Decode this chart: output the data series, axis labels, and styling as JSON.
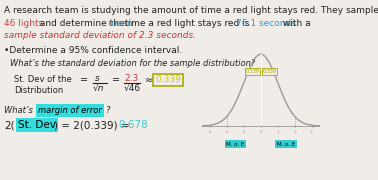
{
  "bg_color": "#f0ede8",
  "text_color": "#222222",
  "line1": "A research team is studying the amount of time a red light stays red. They sample",
  "line2a": "46 lights",
  "line2b": " and determine the ",
  "line2c": "mean",
  "line2d": " time a red light stays red is ",
  "line2e": "76.1 seconds",
  "line2f": " with a",
  "line3": "sample standard deviation of 2.3 seconds.",
  "bullet": "•Determine a 95% confidence interval.",
  "q1": "What’s the standard deviation for the sample distribution?",
  "label_stdev": "St. Dev of the",
  "label_dist": "Distribution",
  "formula_eq1": "= ",
  "formula_s": "s",
  "formula_sqrtn": "√n",
  "formula_eq2": "=",
  "formula_23": "2.3",
  "formula_sqrt46": "√46",
  "formula_approx": "≈",
  "formula_result": "0.339",
  "q2a": "What’s the ",
  "q2b": "margin of error",
  "q2c": "?",
  "moe_2": "2(",
  "moe_stdev": "St. Dev",
  "moe_rest": ") = 2(0.339) = ",
  "moe_result": "0.678",
  "color_red46": "#cc4444",
  "color_mean": "#3399cc",
  "color_76": "#3399cc",
  "color_line3": "#cc3333",
  "color_result": "#cccc00",
  "color_cyan": "#33cccc",
  "color_moe_result": "#33cccc",
  "color_darktext": "#222222",
  "curve_color": "#999999",
  "moe_label_color": "#aaaa00",
  "moe_box_color": "#33cccc"
}
